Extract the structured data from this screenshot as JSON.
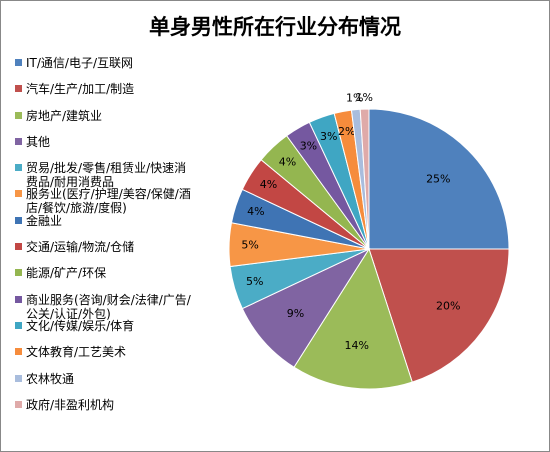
{
  "chart_data": {
    "type": "pie",
    "title": "单身男性所在行业分布情况",
    "categories": [
      "IT/通信/电子/互联网",
      "汽车/生产/加工/制造",
      "房地产/建筑业",
      "其他",
      "贸易/批发/零售/租赁业/快速消费品/耐用消费品",
      "服务业(医疗/护理/美容/保健/酒店/餐饮/旅游/度假)",
      "金融业",
      "交通/运输/物流/仓储",
      "能源/矿产/环保",
      "商业服务(咨询/财会/法律/广告/公关/认证/外包)",
      "文化/传媒/娱乐/体育",
      "文体教育/工艺美术",
      "农林牧通",
      "政府/非盈利机构"
    ],
    "values": [
      25,
      20,
      14,
      9,
      5,
      5,
      4,
      4,
      4,
      3,
      3,
      2,
      1,
      1
    ],
    "value_labels": [
      "25%",
      "20%",
      "14%",
      "9%",
      "5%",
      "5%",
      "4%",
      "4%",
      "4%",
      "3%",
      "3%",
      "2%",
      "1%",
      "1%"
    ],
    "colors": [
      "#4F81BD",
      "#C0504D",
      "#9BBB59",
      "#8064A2",
      "#4BACC6",
      "#F79646",
      "#3F74B4",
      "#C24744",
      "#94B650",
      "#7558A0",
      "#3FA6C3",
      "#F68C3C",
      "#A9BDDD",
      "#DFAAA9"
    ],
    "legend": "left"
  }
}
